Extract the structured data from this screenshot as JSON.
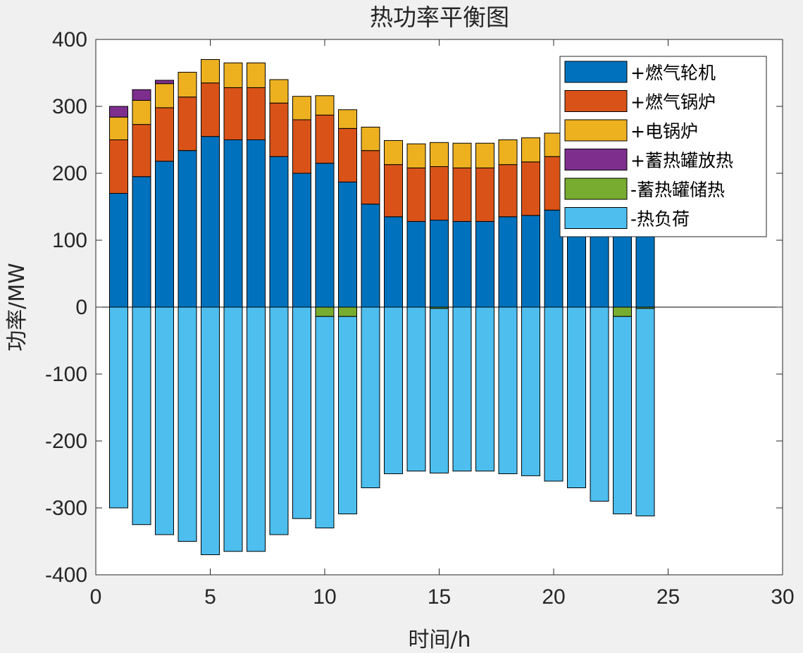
{
  "chart_data": {
    "type": "bar",
    "stacked": true,
    "title": "热功率平衡图",
    "xlabel": "时间/h",
    "ylabel": "功率/MW",
    "xlim": [
      0,
      30
    ],
    "ylim": [
      -400,
      400
    ],
    "xticks": [
      0,
      5,
      10,
      15,
      20,
      25,
      30
    ],
    "yticks": [
      -400,
      -300,
      -200,
      -100,
      0,
      100,
      200,
      300,
      400
    ],
    "grid": false,
    "legend_position": "top-right",
    "x": [
      1,
      2,
      3,
      4,
      5,
      6,
      7,
      8,
      9,
      10,
      11,
      12,
      13,
      14,
      15,
      16,
      17,
      18,
      19,
      20,
      21,
      22,
      23,
      24
    ],
    "series": [
      {
        "name": "+燃气轮机",
        "color": "#0072BD",
        "values": [
          170,
          195,
          218,
          234,
          255,
          250,
          250,
          225,
          200,
          215,
          187,
          154,
          135,
          128,
          130,
          128,
          128,
          135,
          137,
          145,
          160,
          175,
          190,
          200
        ]
      },
      {
        "name": "+燃气锅炉",
        "color": "#D95319",
        "values": [
          80,
          78,
          80,
          80,
          80,
          78,
          78,
          80,
          80,
          72,
          80,
          80,
          78,
          80,
          80,
          80,
          80,
          78,
          80,
          80,
          75,
          70,
          70,
          60
        ]
      },
      {
        "name": "+电锅炉",
        "color": "#EDB120",
        "values": [
          34,
          36,
          36,
          37,
          35,
          37,
          37,
          35,
          35,
          29,
          28,
          35,
          36,
          36,
          36,
          37,
          37,
          37,
          36,
          35,
          35,
          35,
          35,
          35
        ]
      },
      {
        "name": "+蓄热罐放热",
        "color": "#7E2F8E",
        "values": [
          16,
          16,
          5,
          0,
          0,
          0,
          0,
          0,
          0,
          0,
          0,
          0,
          0,
          0,
          0,
          0,
          0,
          0,
          0,
          0,
          0,
          0,
          0,
          0
        ]
      },
      {
        "name": "-蓄热罐储热",
        "color": "#77AC30",
        "values": [
          0,
          0,
          0,
          0,
          0,
          0,
          0,
          0,
          0,
          -14,
          -14,
          0,
          0,
          0,
          -2,
          0,
          0,
          0,
          0,
          0,
          0,
          0,
          -14,
          -2
        ]
      },
      {
        "name": "-热负荷",
        "color": "#4DBEEE",
        "values": [
          -300,
          -325,
          -340,
          -350,
          -370,
          -365,
          -365,
          -340,
          -316,
          -316,
          -295,
          -270,
          -249,
          -245,
          -246,
          -245,
          -245,
          -249,
          -252,
          -260,
          -270,
          -290,
          -295,
          -310
        ]
      }
    ]
  }
}
